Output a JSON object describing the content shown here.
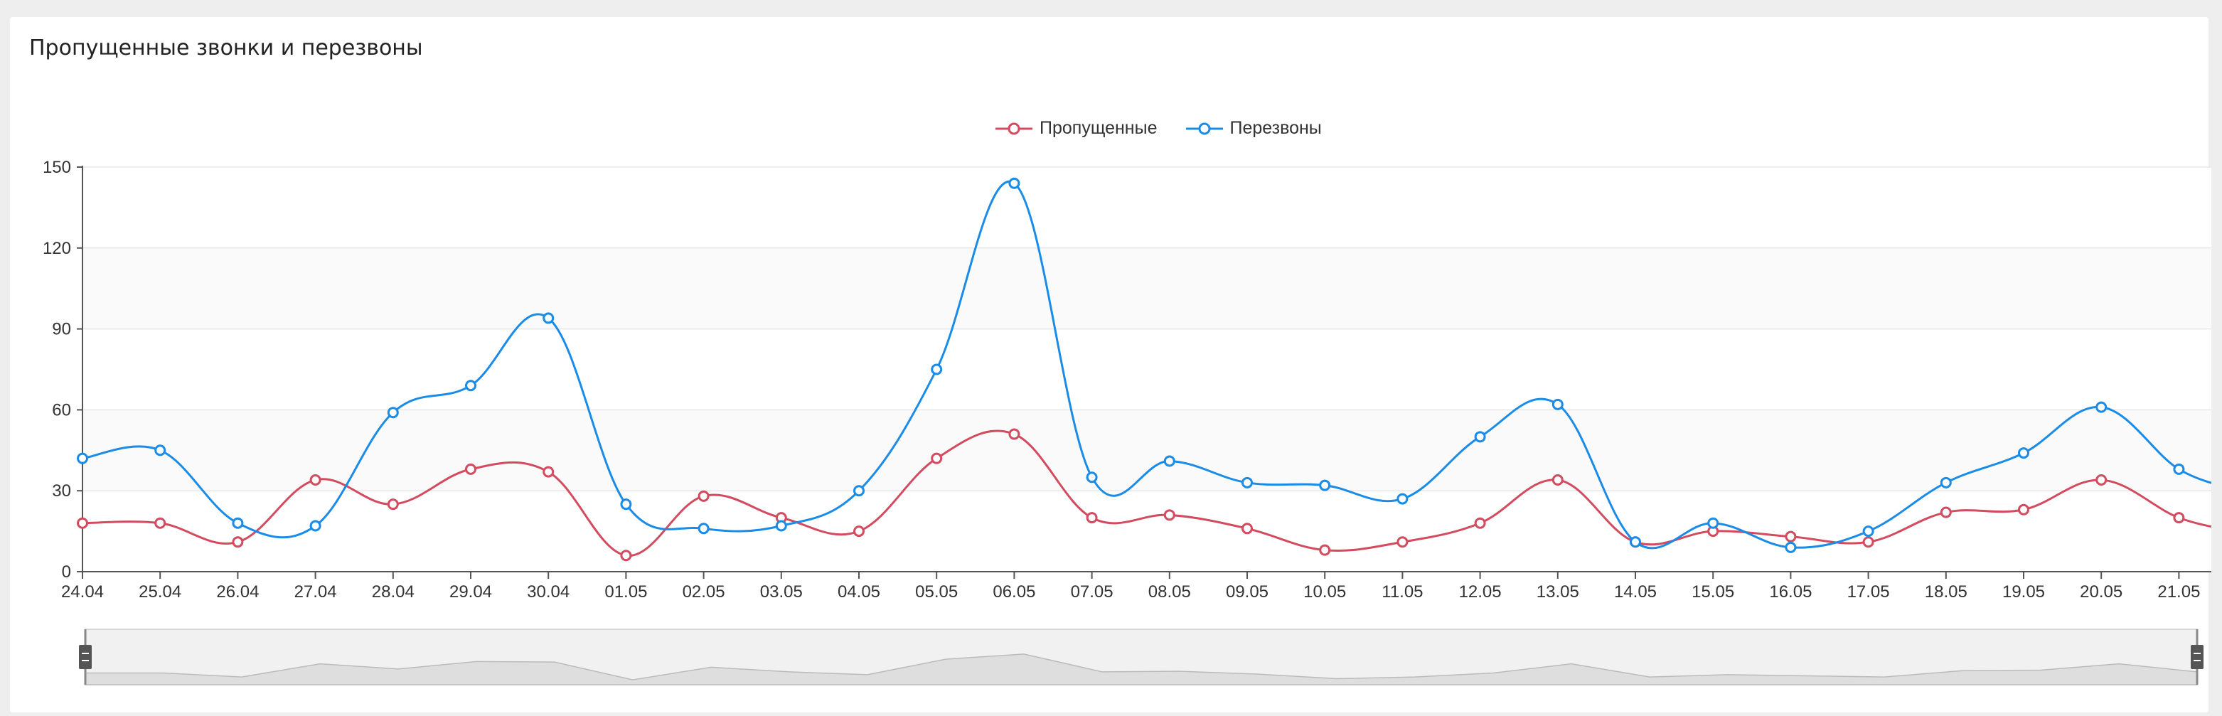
{
  "card": {
    "title": "Пропущенные звонки и перезвоны"
  },
  "legend": [
    {
      "label": "Пропущенные",
      "color": "#d34b5f"
    },
    {
      "label": "Перезвоны",
      "color": "#1a8ce8"
    }
  ],
  "chart_data": {
    "type": "line",
    "title": "Пропущенные звонки и перезвоны",
    "xlabel": "",
    "ylabel": "",
    "ylim": [
      0,
      150
    ],
    "yticks": [
      0,
      30,
      60,
      90,
      120,
      150
    ],
    "grid": true,
    "legend_position": "top-center",
    "smooth": true,
    "categories": [
      "24.04",
      "25.04",
      "26.04",
      "27.04",
      "28.04",
      "29.04",
      "30.04",
      "01.05",
      "02.05",
      "03.05",
      "04.05",
      "05.05",
      "06.05",
      "07.05",
      "08.05",
      "09.05",
      "10.05",
      "11.05",
      "12.05",
      "13.05",
      "14.05",
      "15.05",
      "16.05",
      "17.05",
      "18.05",
      "19.05",
      "20.05",
      "21.05"
    ],
    "series": [
      {
        "name": "Пропущенные",
        "color": "#d34b5f",
        "values": [
          18,
          18,
          11,
          34,
          25,
          38,
          37,
          6,
          28,
          20,
          15,
          42,
          51,
          20,
          21,
          16,
          8,
          11,
          18,
          34,
          11,
          15,
          13,
          11,
          22,
          23,
          34,
          20
        ]
      },
      {
        "name": "Перезвоны",
        "color": "#1a8ce8",
        "values": [
          42,
          45,
          18,
          17,
          59,
          69,
          94,
          25,
          16,
          17,
          30,
          75,
          144,
          35,
          41,
          33,
          32,
          27,
          50,
          62,
          11,
          18,
          9,
          15,
          33,
          44,
          61,
          38
        ]
      }
    ],
    "zoom_slider": {
      "start_percent": 0,
      "end_percent": 100
    }
  }
}
